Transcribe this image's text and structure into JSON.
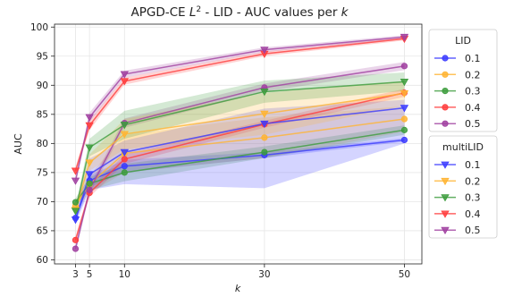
{
  "chart_data": {
    "type": "line",
    "title_prefix": "APGD-CE ",
    "title_math_letter": "L",
    "title_math_sup": "2",
    "title_suffix": " - LID - AUC values per ",
    "title_var": "k",
    "xlabel": "k",
    "ylabel": "AUC",
    "x": [
      3,
      5,
      10,
      30,
      50
    ],
    "xticks": [
      3,
      5,
      10,
      30,
      50
    ],
    "yticks": [
      60,
      65,
      70,
      75,
      80,
      85,
      90,
      95,
      100
    ],
    "xlim": [
      0,
      52.5
    ],
    "ylim": [
      59.3,
      100.5
    ],
    "grid": true,
    "legend_placement": "right",
    "legend_groups": [
      {
        "title": "LID",
        "marker": "circle",
        "group": "LID"
      },
      {
        "title": "multiLID",
        "marker": "triangle-down",
        "group": "multiLID"
      }
    ],
    "series": [
      {
        "name": "0.1",
        "group": "LID",
        "color": "#3b3bff",
        "values": [
          67.2,
          73.6,
          76.1,
          78.0,
          80.6
        ],
        "lower": [
          66.5,
          72.5,
          75.0,
          77.5,
          80.3
        ],
        "upper": [
          67.9,
          74.5,
          77.2,
          78.5,
          80.9
        ]
      },
      {
        "name": "0.2",
        "group": "LID",
        "color": "#ffb432",
        "values": [
          69.3,
          73.0,
          78.3,
          81.0,
          84.2
        ],
        "lower": [
          68.5,
          71.5,
          75.0,
          77.5,
          82.0
        ],
        "upper": [
          70.1,
          74.5,
          81.5,
          84.5,
          86.4
        ]
      },
      {
        "name": "0.3",
        "group": "LID",
        "color": "#3c9c3c",
        "values": [
          69.9,
          73.1,
          75.0,
          78.5,
          82.3
        ],
        "lower": [
          69.2,
          72.0,
          73.5,
          77.5,
          81.5
        ],
        "upper": [
          70.6,
          74.2,
          76.5,
          79.5,
          83.1
        ]
      },
      {
        "name": "0.4",
        "group": "LID",
        "color": "#ff3c3c",
        "values": [
          63.4,
          71.5,
          77.3,
          83.3,
          88.7
        ],
        "lower": [
          62.8,
          70.8,
          76.5,
          82.7,
          88.0
        ],
        "upper": [
          64.0,
          72.2,
          78.1,
          83.9,
          89.4
        ]
      },
      {
        "name": "0.5",
        "group": "LID",
        "color": "#a040a0",
        "values": [
          61.9,
          72.0,
          83.5,
          89.6,
          93.3
        ],
        "lower": [
          61.3,
          71.3,
          82.7,
          88.9,
          92.6
        ],
        "upper": [
          62.5,
          72.7,
          84.3,
          90.3,
          94.0
        ]
      },
      {
        "name": "0.1",
        "group": "multiLID",
        "color": "#3b3bff",
        "values": [
          66.9,
          74.7,
          78.5,
          83.4,
          86.1
        ],
        "lower": [
          66.2,
          72.0,
          73.0,
          72.3,
          80.0
        ],
        "upper": [
          67.6,
          77.4,
          80.5,
          86.0,
          87.5
        ]
      },
      {
        "name": "0.2",
        "group": "multiLID",
        "color": "#ffb432",
        "values": [
          68.6,
          76.7,
          81.6,
          85.1,
          88.6
        ],
        "lower": [
          67.9,
          75.3,
          79.0,
          81.5,
          86.5
        ],
        "upper": [
          69.3,
          78.1,
          84.2,
          88.7,
          90.7
        ]
      },
      {
        "name": "0.3",
        "group": "multiLID",
        "color": "#3c9c3c",
        "values": [
          68.4,
          79.3,
          83.2,
          88.9,
          90.6
        ],
        "lower": [
          67.7,
          77.8,
          80.8,
          87.0,
          89.0
        ],
        "upper": [
          69.1,
          80.8,
          85.6,
          90.8,
          92.2
        ]
      },
      {
        "name": "0.4",
        "group": "multiLID",
        "color": "#ff3c3c",
        "values": [
          75.3,
          83.1,
          90.7,
          95.4,
          98.0
        ],
        "lower": [
          74.7,
          82.3,
          90.1,
          95.0,
          97.7
        ],
        "upper": [
          75.9,
          83.9,
          91.3,
          95.8,
          98.3
        ]
      },
      {
        "name": "0.5",
        "group": "multiLID",
        "color": "#a040a0",
        "values": [
          73.6,
          84.5,
          91.9,
          96.1,
          98.3
        ],
        "lower": [
          73.0,
          83.7,
          91.3,
          95.7,
          98.0
        ],
        "upper": [
          74.2,
          85.3,
          92.5,
          96.5,
          98.6
        ]
      }
    ]
  }
}
